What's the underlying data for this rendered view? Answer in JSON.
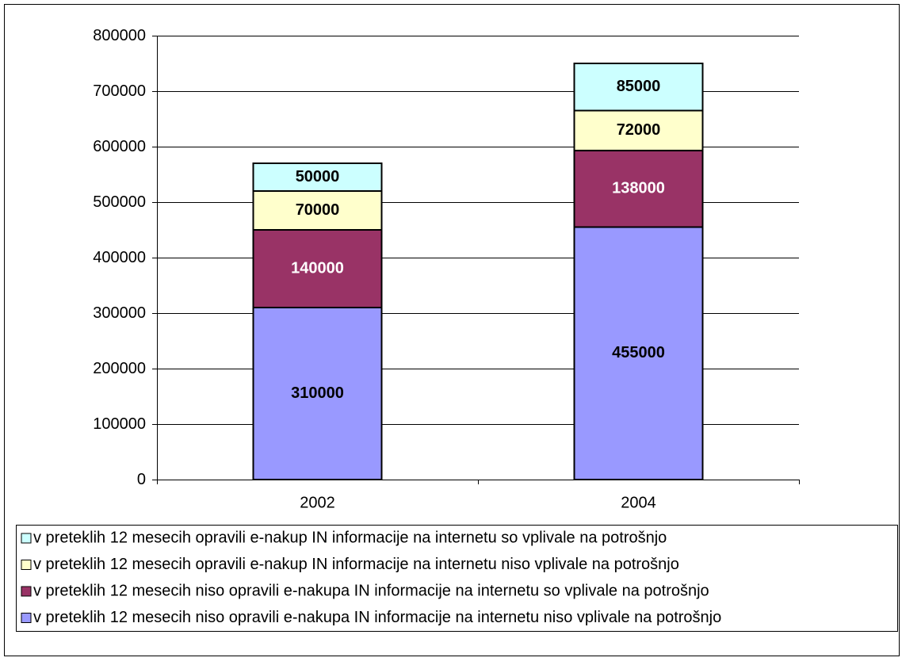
{
  "chart_data": {
    "type": "stacked_bar",
    "categories": [
      "2002",
      "2004"
    ],
    "series": [
      {
        "name": "v preteklih 12 mesecih niso opravili e-nakupa IN informacije na internetu niso vplivale na potrošnjo",
        "color": "#9999ff",
        "label_color": "#000000",
        "values": [
          310000,
          455000
        ]
      },
      {
        "name": "v preteklih 12 mesecih niso opravili e-nakupa IN informacije na internetu so vplivale na potrošnjo",
        "color": "#993366",
        "label_color": "#ffffff",
        "values": [
          140000,
          138000
        ]
      },
      {
        "name": "v preteklih 12 mesecih opravili e-nakup IN informacije na internetu niso vplivale na potrošnjo",
        "color": "#ffffcc",
        "label_color": "#000000",
        "values": [
          70000,
          72000
        ]
      },
      {
        "name": "v preteklih 12 mesecih opravili e-nakup IN informacije na internetu so vplivale na potrošnjo",
        "color": "#ccffff",
        "label_color": "#000000",
        "values": [
          50000,
          85000
        ]
      }
    ],
    "ylim": [
      0,
      800000
    ],
    "yticks": [
      0,
      100000,
      200000,
      300000,
      400000,
      500000,
      600000,
      700000,
      800000
    ],
    "grid": true,
    "legend": "bottom"
  }
}
